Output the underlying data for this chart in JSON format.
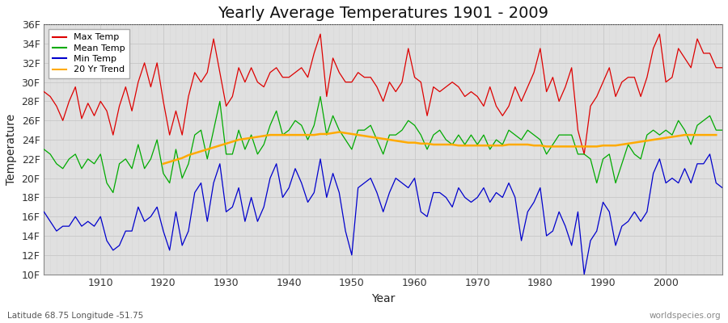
{
  "title": "Yearly Average Temperatures 1901 - 2009",
  "xlabel": "Year",
  "ylabel": "Temperature",
  "subtitle_lat_lon": "Latitude 68.75 Longitude -51.75",
  "watermark": "worldspecies.org",
  "years": [
    1901,
    1902,
    1903,
    1904,
    1905,
    1906,
    1907,
    1908,
    1909,
    1910,
    1911,
    1912,
    1913,
    1914,
    1915,
    1916,
    1917,
    1918,
    1919,
    1920,
    1921,
    1922,
    1923,
    1924,
    1925,
    1926,
    1927,
    1928,
    1929,
    1930,
    1931,
    1932,
    1933,
    1934,
    1935,
    1936,
    1937,
    1938,
    1939,
    1940,
    1941,
    1942,
    1943,
    1944,
    1945,
    1946,
    1947,
    1948,
    1949,
    1950,
    1951,
    1952,
    1953,
    1954,
    1955,
    1956,
    1957,
    1958,
    1959,
    1960,
    1961,
    1962,
    1963,
    1964,
    1965,
    1966,
    1967,
    1968,
    1969,
    1970,
    1971,
    1972,
    1973,
    1974,
    1975,
    1976,
    1977,
    1978,
    1979,
    1980,
    1981,
    1982,
    1983,
    1984,
    1985,
    1986,
    1987,
    1988,
    1989,
    1990,
    1991,
    1992,
    1993,
    1994,
    1995,
    1996,
    1997,
    1998,
    1999,
    2000,
    2001,
    2002,
    2003,
    2004,
    2005,
    2006,
    2007,
    2008,
    2009
  ],
  "max_temp": [
    29.0,
    28.5,
    27.5,
    26.0,
    28.0,
    29.5,
    26.2,
    27.8,
    26.5,
    28.0,
    27.0,
    24.5,
    27.5,
    29.5,
    27.0,
    30.0,
    32.0,
    29.5,
    32.0,
    28.0,
    24.5,
    27.0,
    24.5,
    28.5,
    31.0,
    30.0,
    31.0,
    34.5,
    31.0,
    27.5,
    28.5,
    31.5,
    30.0,
    31.5,
    30.0,
    29.5,
    31.0,
    31.5,
    30.5,
    30.5,
    31.0,
    31.5,
    30.5,
    33.0,
    35.0,
    28.5,
    32.5,
    31.0,
    30.0,
    30.0,
    31.0,
    30.5,
    30.5,
    29.5,
    28.0,
    30.0,
    29.0,
    30.0,
    33.5,
    30.5,
    30.0,
    26.5,
    29.5,
    29.0,
    29.5,
    30.0,
    29.5,
    28.5,
    29.0,
    28.5,
    27.5,
    29.5,
    27.5,
    26.5,
    27.5,
    29.5,
    28.0,
    29.5,
    31.0,
    33.5,
    29.0,
    30.5,
    28.0,
    29.5,
    31.5,
    25.0,
    22.5,
    27.5,
    28.5,
    30.0,
    31.5,
    28.5,
    30.0,
    30.5,
    30.5,
    28.5,
    30.5,
    33.5,
    35.0,
    30.0,
    30.5,
    33.5,
    32.5,
    31.5,
    34.5,
    33.0,
    33.0,
    31.5,
    31.5
  ],
  "mean_temp": [
    23.0,
    22.5,
    21.5,
    21.0,
    22.0,
    22.5,
    21.0,
    22.0,
    21.5,
    22.5,
    19.5,
    18.5,
    21.5,
    22.0,
    21.0,
    23.5,
    21.0,
    22.0,
    24.0,
    20.5,
    19.5,
    23.0,
    20.0,
    21.5,
    24.5,
    25.0,
    22.0,
    25.0,
    28.0,
    22.5,
    22.5,
    25.0,
    23.0,
    24.5,
    22.5,
    23.5,
    25.5,
    27.0,
    24.5,
    25.0,
    26.0,
    25.5,
    24.0,
    25.5,
    28.5,
    24.5,
    26.5,
    25.0,
    24.0,
    23.0,
    25.0,
    25.0,
    25.5,
    24.0,
    22.5,
    24.5,
    24.5,
    25.0,
    26.0,
    25.5,
    24.5,
    23.0,
    24.5,
    25.0,
    24.0,
    23.5,
    24.5,
    23.5,
    24.5,
    23.5,
    24.5,
    23.0,
    24.0,
    23.5,
    25.0,
    24.5,
    24.0,
    25.0,
    24.5,
    24.0,
    22.5,
    23.5,
    24.5,
    24.5,
    24.5,
    22.5,
    22.5,
    22.0,
    19.5,
    22.0,
    22.5,
    19.5,
    21.5,
    23.5,
    22.5,
    22.0,
    24.5,
    25.0,
    24.5,
    25.0,
    24.5,
    26.0,
    25.0,
    23.5,
    25.5,
    26.0,
    26.5,
    25.0,
    25.0
  ],
  "min_temp": [
    16.5,
    15.5,
    14.5,
    15.0,
    15.0,
    16.0,
    15.0,
    15.5,
    15.0,
    16.0,
    13.5,
    12.5,
    13.0,
    14.5,
    14.5,
    17.0,
    15.5,
    16.0,
    17.0,
    14.5,
    12.5,
    16.5,
    13.0,
    14.5,
    18.5,
    19.5,
    15.5,
    19.5,
    21.5,
    16.5,
    17.0,
    19.0,
    15.5,
    18.0,
    15.5,
    17.0,
    20.0,
    21.5,
    18.0,
    19.0,
    21.0,
    19.5,
    17.5,
    18.5,
    22.0,
    18.0,
    20.5,
    18.5,
    14.5,
    12.0,
    19.0,
    19.5,
    20.0,
    18.5,
    16.5,
    18.5,
    20.0,
    19.5,
    19.0,
    20.0,
    16.5,
    16.0,
    18.5,
    18.5,
    18.0,
    17.0,
    19.0,
    18.0,
    17.5,
    18.0,
    19.0,
    17.5,
    18.5,
    18.0,
    19.5,
    18.0,
    13.5,
    16.5,
    17.5,
    19.0,
    14.0,
    14.5,
    16.5,
    15.0,
    13.0,
    16.5,
    10.0,
    13.5,
    14.5,
    17.5,
    16.5,
    13.0,
    15.0,
    15.5,
    16.5,
    15.5,
    16.5,
    20.5,
    22.0,
    19.5,
    20.0,
    19.5,
    21.0,
    19.5,
    21.5,
    21.5,
    22.5,
    19.5,
    19.0
  ],
  "trend_20yr": [
    null,
    null,
    null,
    null,
    null,
    null,
    null,
    null,
    null,
    null,
    null,
    null,
    null,
    null,
    null,
    null,
    null,
    null,
    null,
    21.5,
    21.7,
    21.9,
    22.1,
    22.4,
    22.6,
    22.8,
    23.0,
    23.2,
    23.4,
    23.6,
    23.8,
    24.0,
    24.1,
    24.2,
    24.3,
    24.4,
    24.5,
    24.5,
    24.5,
    24.5,
    24.5,
    24.5,
    24.5,
    24.5,
    24.6,
    24.6,
    24.7,
    24.8,
    24.7,
    24.6,
    24.5,
    24.4,
    24.3,
    24.2,
    24.1,
    24.0,
    23.9,
    23.8,
    23.7,
    23.7,
    23.6,
    23.6,
    23.5,
    23.5,
    23.5,
    23.5,
    23.4,
    23.4,
    23.4,
    23.4,
    23.4,
    23.4,
    23.4,
    23.4,
    23.5,
    23.5,
    23.5,
    23.5,
    23.4,
    23.4,
    23.3,
    23.3,
    23.3,
    23.3,
    23.3,
    23.3,
    23.3,
    23.3,
    23.3,
    23.4,
    23.4,
    23.4,
    23.5,
    23.6,
    23.7,
    23.8,
    23.9,
    24.0,
    24.1,
    24.2,
    24.3,
    24.4,
    24.5,
    24.5,
    24.5,
    24.5,
    24.5,
    24.5
  ],
  "fig_bg_color": "#ffffff",
  "plot_bg_color": "#e0e0e0",
  "max_color": "#dd0000",
  "mean_color": "#00aa00",
  "min_color": "#0000cc",
  "trend_color": "#ffaa00",
  "grid_color_major": "#c8c8c8",
  "grid_color_minor": "#d8d8d8",
  "title_fontsize": 14,
  "axis_label_fontsize": 10,
  "tick_label_fontsize": 9,
  "ylim": [
    10,
    36
  ],
  "yticks": [
    10,
    12,
    14,
    16,
    18,
    20,
    22,
    24,
    26,
    28,
    30,
    32,
    34,
    36
  ],
  "ytick_labels": [
    "10F",
    "12F",
    "14F",
    "16F",
    "18F",
    "20F",
    "22F",
    "24F",
    "26F",
    "28F",
    "30F",
    "32F",
    "34F",
    "36F"
  ],
  "xtick_positions": [
    1910,
    1920,
    1930,
    1940,
    1950,
    1960,
    1970,
    1980,
    1990,
    2000
  ],
  "xtick_labels": [
    "1910",
    "1920",
    "1930",
    "1940",
    "1950",
    "1960",
    "1970",
    "1980",
    "1990",
    "2000"
  ]
}
